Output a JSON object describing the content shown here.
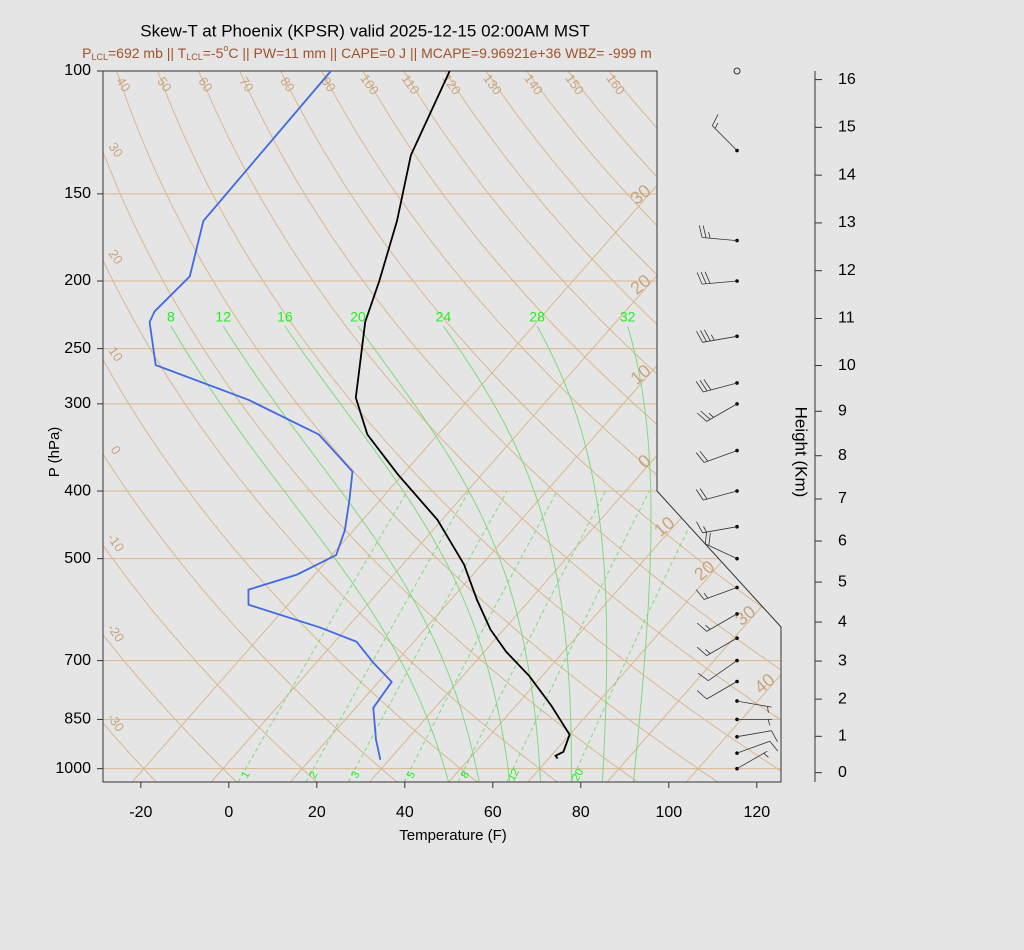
{
  "chart_data": {
    "type": "skew-t",
    "title": "Skew-T at Phoenix (KPSR) valid 2025-12-15 02:00AM MST",
    "subtitle": [
      "P",
      "LCL",
      "=692 mb || T",
      "LCL",
      "=-5",
      "o",
      "C || PW=11 mm || CAPE=0 J || MCAPE=9.96921e+36 WBZ= -999 m"
    ],
    "xlabel": "Temperature (F)",
    "ylabel": "P (hPa)",
    "y2label": "Height (Km)",
    "xlim": [
      -28.6,
      125.5
    ],
    "xticks": [
      -20,
      0,
      20,
      40,
      60,
      80,
      100,
      120
    ],
    "ylim": [
      1045,
      100
    ],
    "yticks": [
      100,
      150,
      200,
      250,
      300,
      400,
      500,
      700,
      850,
      1000
    ],
    "log_y": true,
    "grid": true,
    "y2ticks": [
      0,
      1,
      2,
      3,
      4,
      5,
      6,
      7,
      8,
      9,
      10,
      11,
      12,
      13,
      14,
      15,
      16
    ],
    "isotherms_c": [
      {
        "value": -30,
        "label": "30"
      },
      {
        "value": -20,
        "label": "20"
      },
      {
        "value": -10,
        "label": "10"
      },
      0,
      10,
      20,
      30,
      40
    ],
    "dry_adiabats_c": [
      -30,
      -20,
      -10,
      0,
      10,
      20,
      30,
      40,
      50,
      60,
      70,
      80,
      90,
      100,
      110,
      120,
      130,
      140,
      150,
      160
    ],
    "moist_adiabats_c": [
      8,
      12,
      16,
      20,
      24,
      28,
      32
    ],
    "mixing_ratios": [
      1,
      2,
      3,
      5,
      8,
      12,
      20
    ],
    "series": [
      {
        "color": "#000000",
        "p": [
          100,
          132,
          164,
          200,
          229,
          294,
          332,
          379,
          440,
          510,
          573,
          632,
          680,
          736,
          812,
          894,
          946,
          958,
          967
        ],
        "values": [
          -92,
          -84,
          -74,
          -66,
          -61,
          -48,
          -38,
          -23,
          -5,
          10,
          20,
          29,
          37,
          47,
          58,
          68,
          70,
          69,
          70
        ]
      },
      {
        "color": "#4169e1",
        "p": [
          100,
          164,
          197,
          221,
          229,
          264,
          296,
          332,
          375,
          412,
          455,
          494,
          527,
          554,
          582,
          628,
          658,
          705,
          751,
          818,
          909,
          971
        ],
        "values": [
          -119,
          -118,
          -110,
          -111,
          -110,
          -100,
          -72,
          -49,
          -34,
          -29,
          -24,
          -21,
          -26,
          -34,
          -31,
          -10,
          1,
          9,
          17,
          18,
          25,
          30
        ]
      }
    ],
    "wind_p": [
      100,
      130,
      175,
      200,
      240,
      280,
      300,
      350,
      400,
      450,
      500,
      550,
      600,
      650,
      700,
      750,
      800,
      850,
      900,
      950,
      1000
    ],
    "wind_speed": [
      0,
      15,
      25,
      30,
      35,
      30,
      25,
      20,
      20,
      15,
      20,
      15,
      15,
      15,
      10,
      10,
      5,
      5,
      10,
      10,
      5
    ],
    "wind_dir": [
      0,
      315,
      275,
      265,
      260,
      255,
      240,
      250,
      255,
      260,
      295,
      250,
      240,
      240,
      235,
      240,
      100,
      90,
      80,
      70,
      60
    ]
  }
}
